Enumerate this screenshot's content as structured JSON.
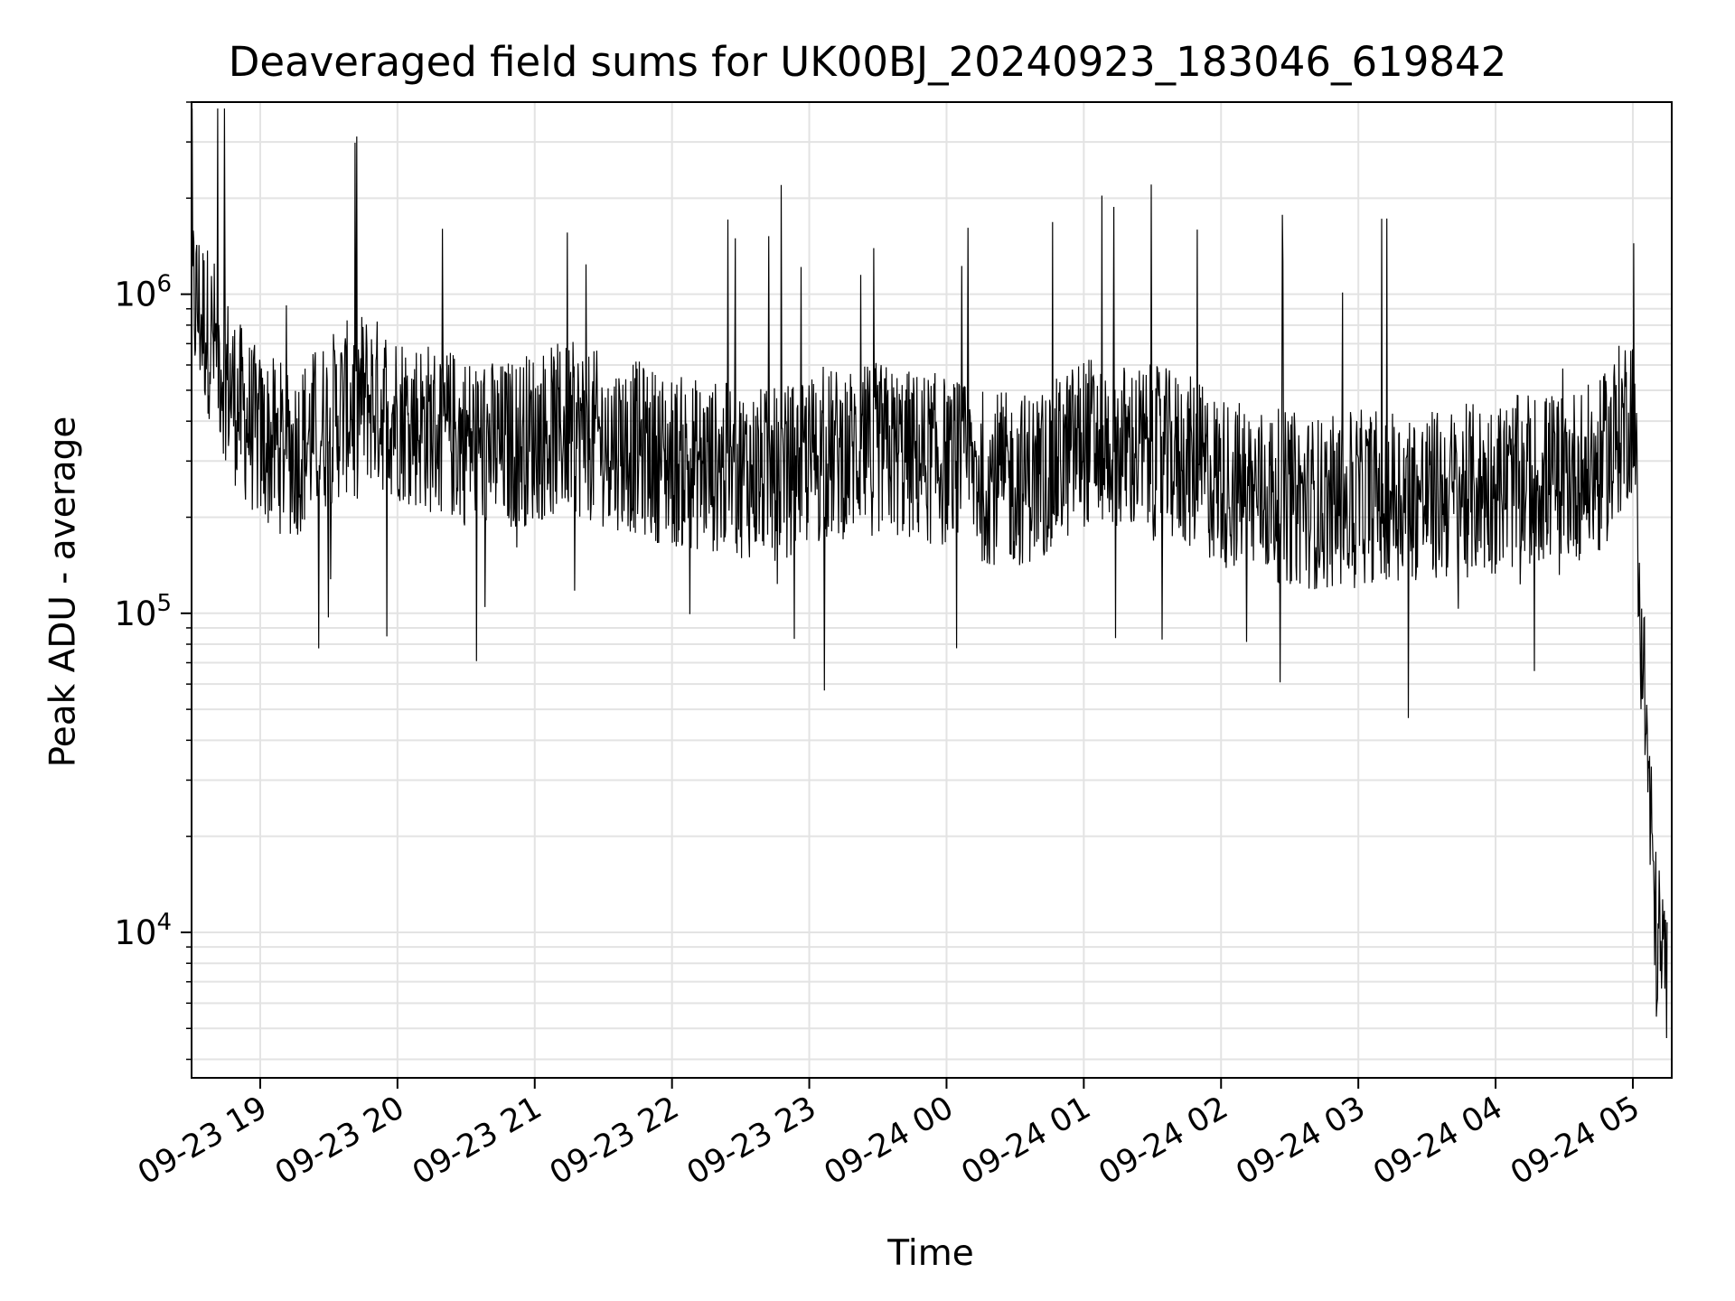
{
  "chart_data": {
    "type": "line",
    "title": "Deaveraged field sums for UK00BJ_20240923_183046_619842",
    "xlabel": "Time",
    "ylabel": "Peak ADU - average",
    "y_scale": "log",
    "ylim": [
      3500,
      4000000
    ],
    "xlim": [
      "2024-09-23T18:30:00",
      "2024-09-24T05:17:00"
    ],
    "x_ticks": [
      "09-23 19",
      "09-23 20",
      "09-23 21",
      "09-23 22",
      "09-23 23",
      "09-24 00",
      "09-24 01",
      "09-24 02",
      "09-24 03",
      "09-24 04",
      "09-24 05"
    ],
    "y_ticks": [
      {
        "base": "10",
        "exp": "4",
        "value": 10000
      },
      {
        "base": "10",
        "exp": "5",
        "value": 100000
      },
      {
        "base": "10",
        "exp": "6",
        "value": 1000000
      }
    ],
    "grid": true,
    "line_color": "#000000",
    "series": [
      {
        "x": [
          "2024-09-23T18:30",
          "2024-09-23T18:40",
          "2024-09-23T18:50",
          "2024-09-23T19:00",
          "2024-09-23T19:15",
          "2024-09-23T19:30",
          "2024-09-23T19:45",
          "2024-09-23T20:00",
          "2024-09-23T20:15",
          "2024-09-23T20:30",
          "2024-09-23T20:45",
          "2024-09-23T21:00",
          "2024-09-23T21:15",
          "2024-09-23T21:30",
          "2024-09-23T21:45",
          "2024-09-23T22:00",
          "2024-09-23T22:15",
          "2024-09-23T22:30",
          "2024-09-23T22:45",
          "2024-09-23T23:00",
          "2024-09-23T23:15",
          "2024-09-23T23:30",
          "2024-09-23T23:45",
          "2024-09-24T00:00",
          "2024-09-24T00:15",
          "2024-09-24T00:30",
          "2024-09-24T00:45",
          "2024-09-24T01:00",
          "2024-09-24T01:15",
          "2024-09-24T01:30",
          "2024-09-24T01:45",
          "2024-09-24T02:00",
          "2024-09-24T02:15",
          "2024-09-24T02:30",
          "2024-09-24T02:45",
          "2024-09-24T03:00",
          "2024-09-24T03:15",
          "2024-09-24T03:30",
          "2024-09-24T03:45",
          "2024-09-24T04:00",
          "2024-09-24T04:15",
          "2024-09-24T04:30",
          "2024-09-24T04:45",
          "2024-09-24T05:00",
          "2024-09-24T05:05",
          "2024-09-24T05:10",
          "2024-09-24T05:15"
        ],
        "y": [
          1000000,
          700000,
          450000,
          350000,
          320000,
          400000,
          480000,
          420000,
          380000,
          350000,
          330000,
          360000,
          380000,
          350000,
          330000,
          300000,
          290000,
          280000,
          270000,
          300000,
          320000,
          330000,
          310000,
          300000,
          270000,
          260000,
          280000,
          350000,
          330000,
          320000,
          300000,
          260000,
          240000,
          230000,
          220000,
          230000,
          240000,
          230000,
          240000,
          250000,
          260000,
          270000,
          280000,
          450000,
          60000,
          10000,
          7000
        ]
      }
    ]
  }
}
